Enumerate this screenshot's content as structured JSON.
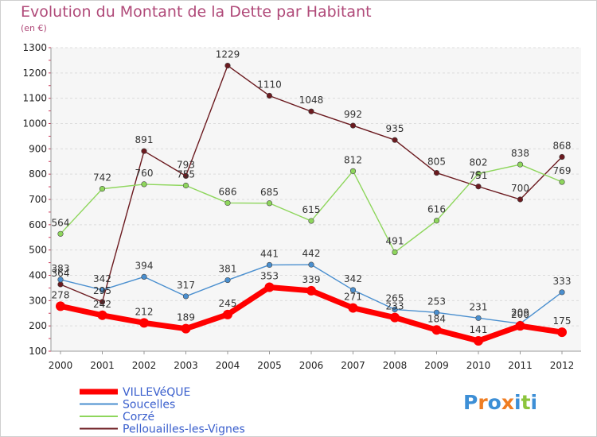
{
  "chart_data": {
    "type": "line",
    "title": "Evolution du Montant de la Dette par Habitant",
    "subtitle": "(en €)",
    "xlabel": "",
    "ylabel": "",
    "ylim": [
      100,
      1300
    ],
    "yticks": [
      100,
      200,
      300,
      400,
      500,
      600,
      700,
      800,
      900,
      1000,
      1100,
      1200,
      1300
    ],
    "categories": [
      "2000",
      "2001",
      "2002",
      "2003",
      "2004",
      "2005",
      "2006",
      "2007",
      "2008",
      "2009",
      "2010",
      "2011",
      "2012"
    ],
    "grid": true,
    "legend_position": "bottom-left",
    "series": [
      {
        "name": "Pellouailles-les-Vignes",
        "color": "#6b1a1f",
        "values": [
          364,
          295,
          891,
          793,
          1229,
          1110,
          1048,
          992,
          935,
          805,
          751,
          700,
          868
        ]
      },
      {
        "name": "Corzé",
        "color": "#8ed65c",
        "values": [
          564,
          742,
          760,
          755,
          686,
          685,
          615,
          812,
          491,
          616,
          802,
          838,
          769
        ]
      },
      {
        "name": "Soucelles",
        "color": "#4a8fcf",
        "values": [
          383,
          342,
          394,
          317,
          381,
          441,
          442,
          342,
          265,
          253,
          231,
          209,
          333
        ]
      },
      {
        "name": "VILLEVéQUE",
        "color": "#ff0000",
        "values": [
          278,
          242,
          212,
          189,
          245,
          353,
          339,
          271,
          233,
          184,
          141,
          200,
          175
        ]
      }
    ]
  },
  "logo": {
    "text": "Proxiti",
    "letters": [
      "P",
      "r",
      "o",
      "x",
      "i",
      "t",
      "i"
    ],
    "colors": [
      "#3d8fd6",
      "#ef7d22",
      "#3d8fd6",
      "#ef7d22",
      "#3d8fd6",
      "#8cc43c",
      "#3d8fd6"
    ]
  }
}
